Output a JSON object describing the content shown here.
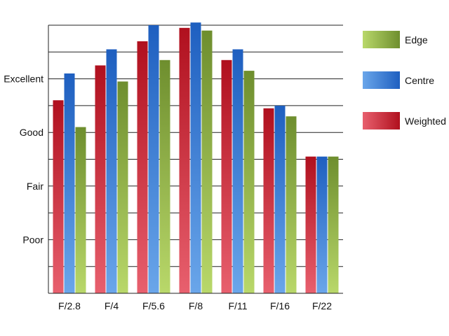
{
  "chart_data": {
    "type": "bar",
    "categories": [
      "F/2.8",
      "F/4",
      "F/5.6",
      "F/8",
      "F/11",
      "F/16",
      "F/22"
    ],
    "series": [
      {
        "name": "Weighted",
        "values": [
          7.2,
          8.5,
          9.4,
          9.9,
          8.7,
          6.9,
          5.1
        ],
        "color_dark": "#b0101e",
        "color_light": "#e8606e"
      },
      {
        "name": "Centre",
        "values": [
          8.2,
          9.1,
          10.0,
          10.1,
          9.1,
          7.0,
          5.1
        ],
        "color_dark": "#1e5fc0",
        "color_light": "#6aa6ea"
      },
      {
        "name": "Edge",
        "values": [
          6.2,
          7.9,
          8.7,
          9.8,
          8.3,
          6.6,
          5.1
        ],
        "color_dark": "#6e8e2e",
        "color_light": "#b9d86a"
      }
    ],
    "legend_order": [
      "Edge",
      "Centre",
      "Weighted"
    ],
    "y_tick_labels": [
      {
        "value": 2,
        "label": "Poor"
      },
      {
        "value": 4,
        "label": "Fair"
      },
      {
        "value": 6,
        "label": "Good"
      },
      {
        "value": 8,
        "label": "Excellent"
      }
    ],
    "ylim": [
      0,
      10
    ],
    "gridlines": [
      1,
      2,
      3,
      4,
      5,
      6,
      7,
      8,
      9,
      10
    ],
    "grid": true,
    "legend_position": "right",
    "title": "",
    "xlabel": "",
    "ylabel": ""
  }
}
